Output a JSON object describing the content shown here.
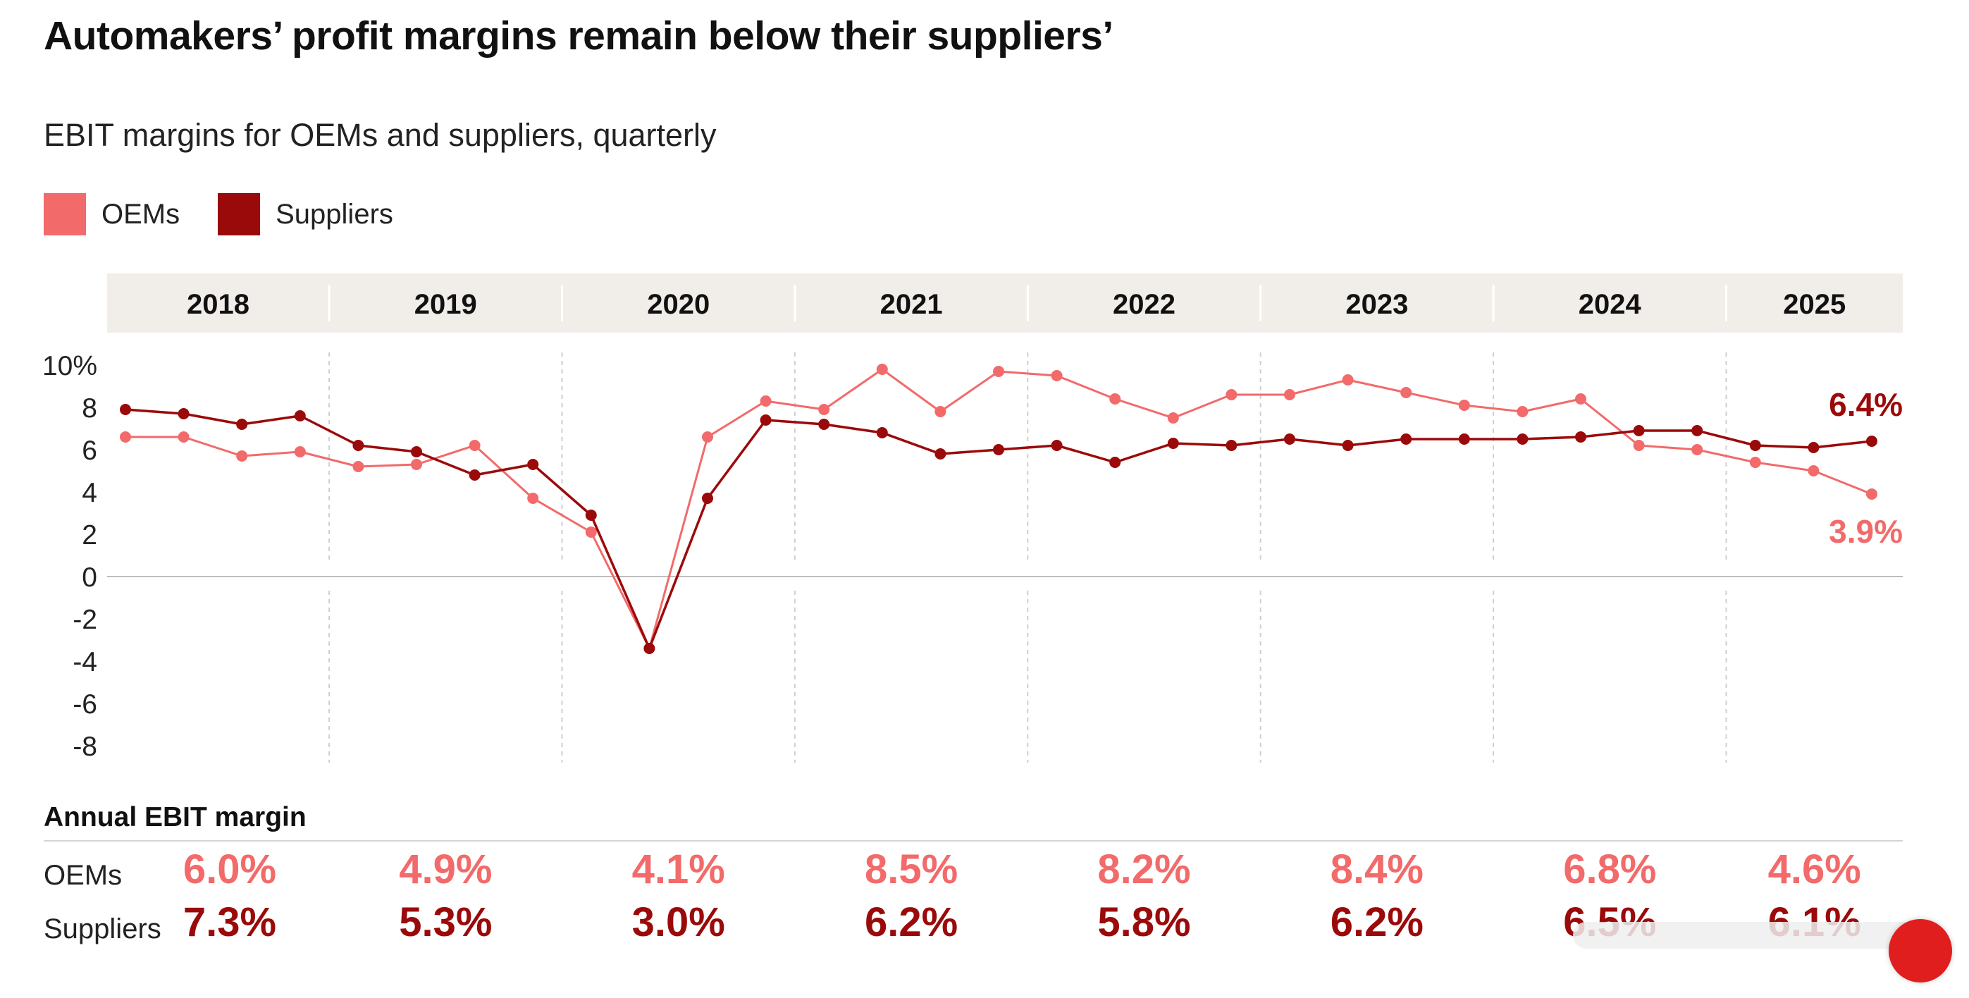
{
  "title": "Automakers’ profit margins remain below their suppliers’",
  "subtitle": "EBIT margins for OEMs and suppliers, quarterly",
  "legend": [
    {
      "label": "OEMs",
      "color": "#f26a6a"
    },
    {
      "label": "Suppliers",
      "color": "#9b0a0a"
    }
  ],
  "colors": {
    "oems": "#f26a6a",
    "suppliers": "#9b0a0a",
    "year_band": "#f1eeea",
    "grid": "#cfcfcf"
  },
  "chart_data": {
    "type": "line",
    "title": "Automakers’ profit margins remain below their suppliers’",
    "subtitle": "EBIT margins for OEMs and suppliers, quarterly",
    "xlabel": "",
    "ylabel": "",
    "ylim": [
      -9,
      10
    ],
    "y_ticks": [
      10,
      8,
      6,
      4,
      2,
      0,
      -2,
      -4,
      -6,
      -8
    ],
    "y_tick_labels": [
      "10%",
      "8",
      "6",
      "4",
      "2",
      "0",
      "-2",
      "-4",
      "-6",
      "-8"
    ],
    "years": [
      "2018",
      "2019",
      "2020",
      "2021",
      "2022",
      "2023",
      "2024",
      "2025"
    ],
    "quarters_per_year": [
      4,
      4,
      4,
      4,
      4,
      4,
      4,
      3
    ],
    "series": [
      {
        "name": "OEMs",
        "values": [
          6.6,
          6.6,
          5.7,
          5.9,
          5.2,
          5.3,
          6.2,
          3.7,
          2.1,
          -3.4,
          6.6,
          8.3,
          7.9,
          9.8,
          7.8,
          9.7,
          9.5,
          8.4,
          7.5,
          8.6,
          8.6,
          9.3,
          8.7,
          8.1,
          7.8,
          8.4,
          6.2,
          6.0,
          5.4,
          5.0,
          3.9
        ],
        "end_label": "3.9%"
      },
      {
        "name": "Suppliers",
        "values": [
          7.9,
          7.7,
          7.2,
          7.6,
          6.2,
          5.9,
          4.8,
          5.3,
          2.9,
          -3.4,
          3.7,
          7.4,
          7.2,
          6.8,
          5.8,
          6.0,
          6.2,
          5.4,
          6.3,
          6.2,
          6.5,
          6.2,
          6.5,
          6.5,
          6.5,
          6.6,
          6.9,
          6.9,
          6.2,
          6.1,
          6.4
        ],
        "end_label": "6.4%"
      }
    ]
  },
  "annual": {
    "heading": "Annual EBIT margin",
    "oems_label": "OEMs",
    "suppliers_label": "Suppliers",
    "oems": [
      "6.0%",
      "4.9%",
      "4.1%",
      "8.5%",
      "8.2%",
      "8.4%",
      "6.8%",
      "4.6%"
    ],
    "suppliers": [
      "7.3%",
      "5.3%",
      "3.0%",
      "6.2%",
      "5.8%",
      "6.2%",
      "6.5%",
      "6.1%"
    ]
  }
}
